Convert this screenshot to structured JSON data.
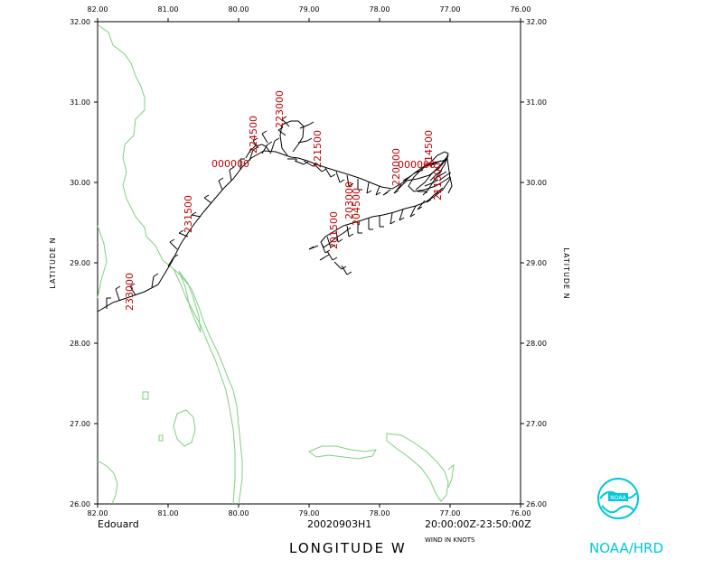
{
  "colors": {
    "coast": "#7fcf7f",
    "track": "#000000",
    "time_label": "#c00000",
    "logo": "#00c8d8"
  },
  "map": {
    "lon_range": [
      76.0,
      82.0
    ],
    "lat_range": [
      26.0,
      32.0
    ],
    "lon_labels": [
      "82.00",
      "81.00",
      "80.00",
      "79.00",
      "78.00",
      "77.00",
      "76.00"
    ],
    "lat_labels": [
      "32.00",
      "31.00",
      "30.00",
      "29.00",
      "28.00",
      "27.00",
      "26.00"
    ],
    "ylabel_left": "LATITUDE  N",
    "ylabel_right": "LATITUDE  N"
  },
  "footer": {
    "storm": "Edouard",
    "flight": "20020903H1",
    "time_range": "20:00:00Z-23:50:00Z",
    "xlabel": "LONGITUDE  W",
    "wind_units": "WIND IN KNOTS",
    "logo_text": "NOAA/HRD",
    "logo_badge": "NOAA"
  },
  "time_labels": [
    "233000",
    "231500",
    "000000",
    "224500",
    "223000",
    "221500",
    "220000",
    "214500",
    "203000",
    "204500",
    "201500",
    "211500"
  ],
  "wind_barbs_count": 60
}
